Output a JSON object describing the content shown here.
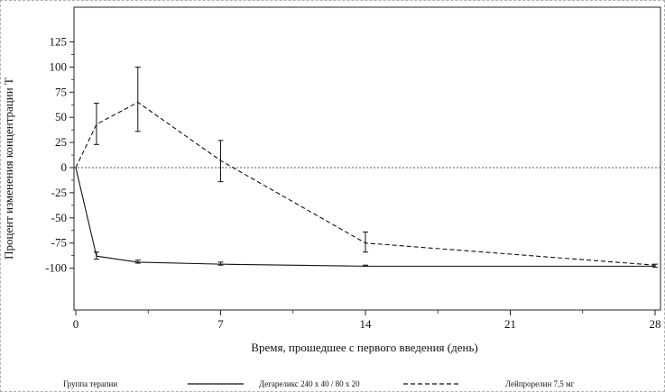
{
  "chart_data": {
    "type": "line",
    "title": "",
    "xlabel": "Время, прошедшее с первого введения (день)",
    "ylabel": "Процент изменения концентрации Т",
    "xlim": [
      0,
      28
    ],
    "ylim": [
      -110,
      128
    ],
    "xticks": [
      0,
      7,
      14,
      21,
      28
    ],
    "yticks": [
      125,
      100,
      75,
      50,
      25,
      0,
      -25,
      -50,
      -75,
      -100
    ],
    "reference_line_y": 0,
    "legend": {
      "title": "Группа терапии",
      "position": "bottom"
    },
    "series": [
      {
        "name": "Дегареликс 240 х 40 / 80 х 20",
        "style": "solid",
        "x": [
          0,
          1,
          3,
          7,
          14,
          28
        ],
        "y": [
          0,
          -88,
          -94,
          -96,
          -98,
          -98
        ],
        "err_low": [
          null,
          -91,
          -95,
          -97,
          -98,
          -99
        ],
        "err_high": [
          null,
          -84,
          -92,
          -94,
          -97,
          -96
        ]
      },
      {
        "name": "Лейпрорелин 7,5 мг",
        "style": "dashed",
        "x": [
          0,
          1,
          3,
          7,
          14,
          28
        ],
        "y": [
          0,
          43,
          65,
          7,
          -75,
          -97
        ],
        "err_low": [
          null,
          23,
          36,
          -14,
          -84,
          null
        ],
        "err_high": [
          null,
          64,
          100,
          27,
          -64,
          null
        ]
      }
    ]
  }
}
